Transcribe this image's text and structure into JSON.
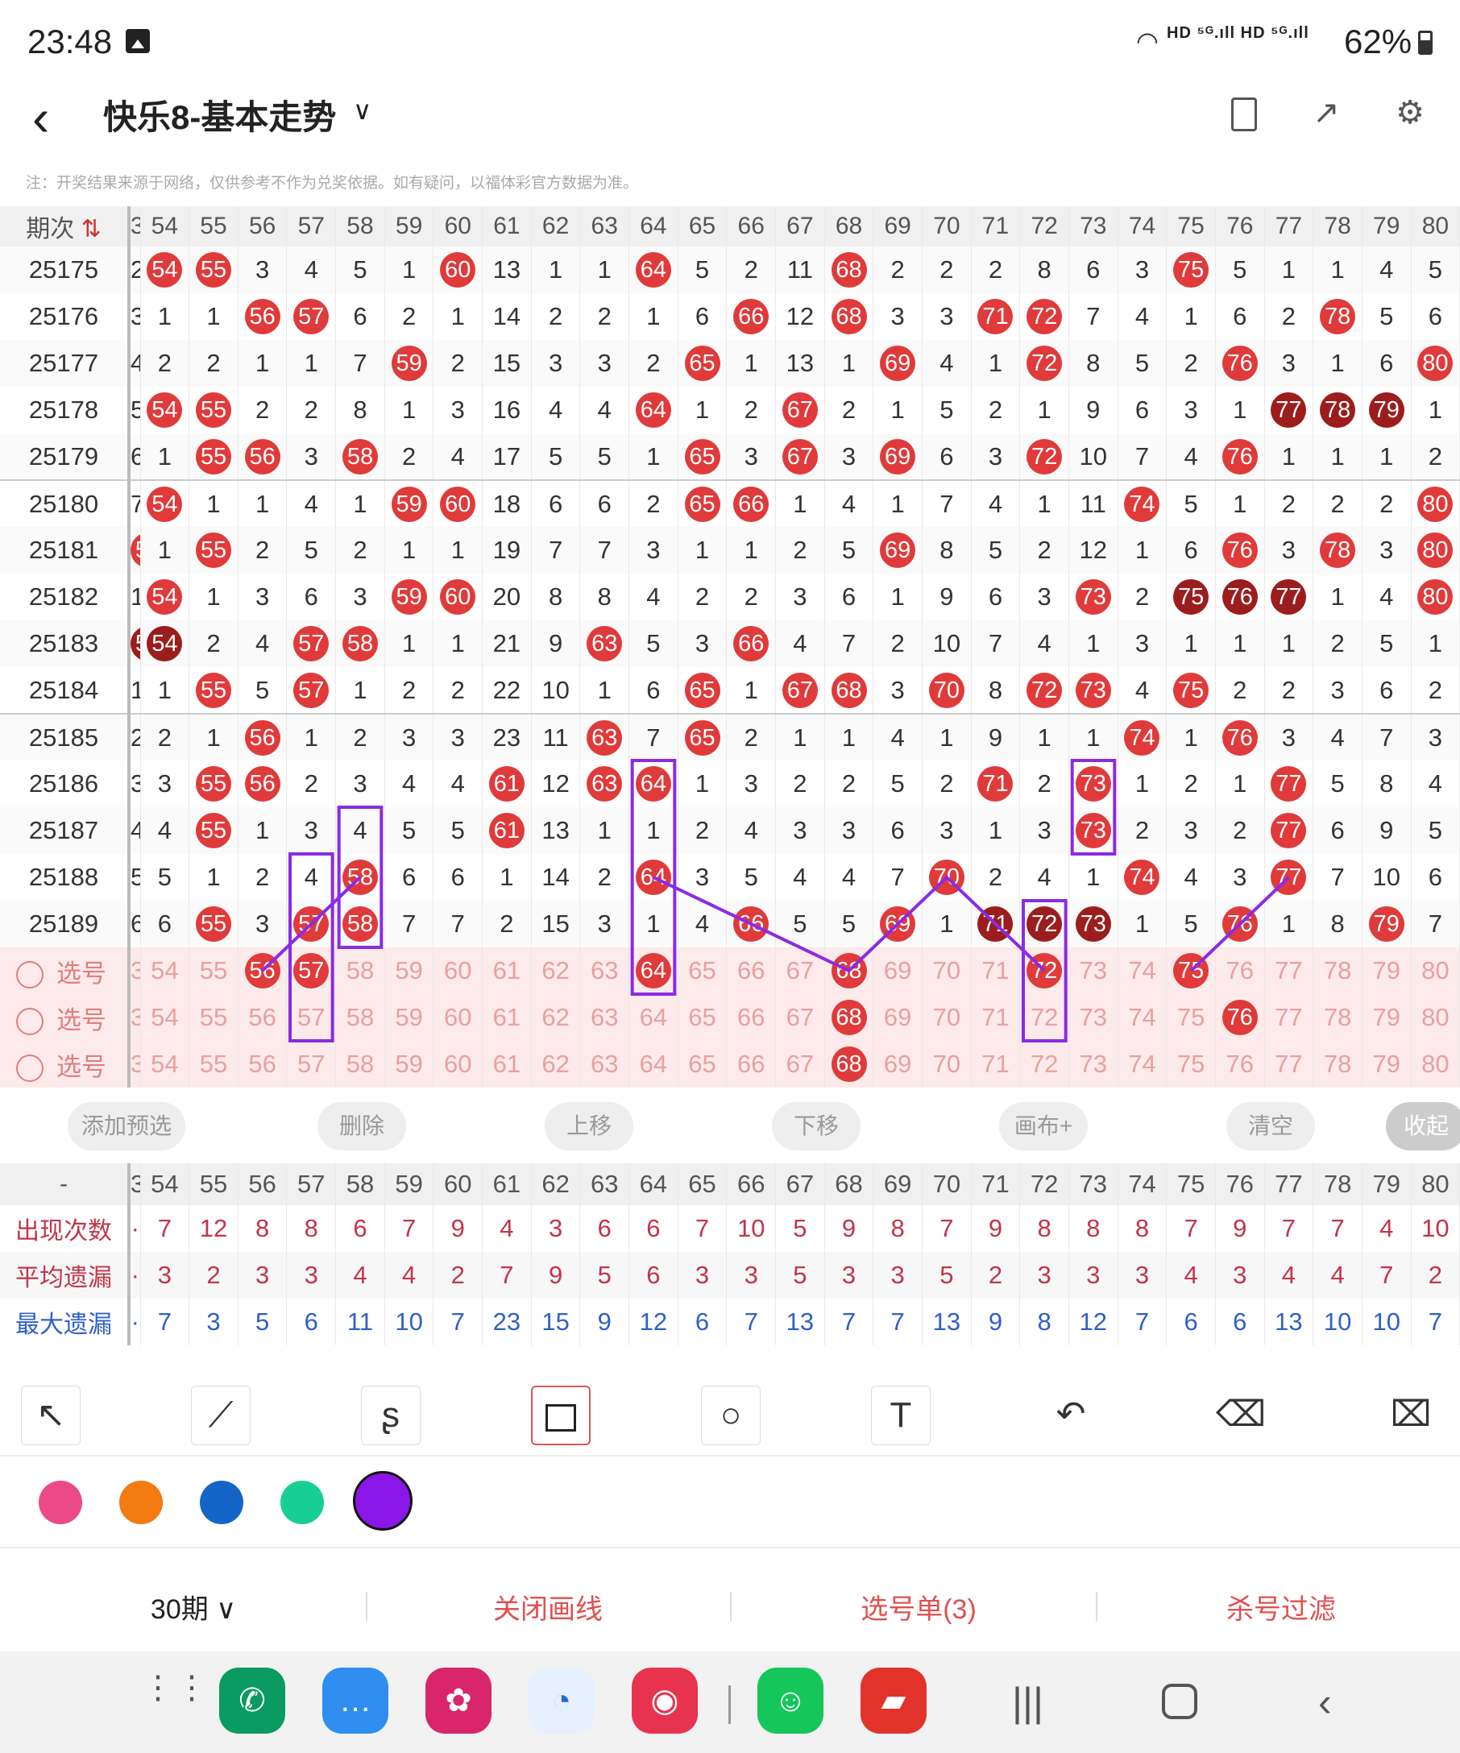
{
  "status": {
    "time": "23:48",
    "indicators": "HD ⁵ᴳ.ıll HD ⁵ᴳ.ıll",
    "battery": "62%"
  },
  "header": {
    "title": "快乐8-基本走势",
    "note": "注：开奖结果来源于网络，仅供参考不作为兑奖依据。如有疑问，以福体彩官方数据为准。"
  },
  "table": {
    "period_label": "期次",
    "cut_head": "3",
    "columns": [
      "54",
      "55",
      "56",
      "57",
      "58",
      "59",
      "60",
      "61",
      "62",
      "63",
      "64",
      "65",
      "66",
      "67",
      "68",
      "69",
      "70",
      "71",
      "72",
      "73",
      "74",
      "75",
      "76",
      "77",
      "78",
      "79",
      "80"
    ],
    "rows": [
      {
        "p": "25175",
        "cut": "2",
        "c": [
          "*54",
          "*55",
          "3",
          "4",
          "5",
          "1",
          "*60",
          "13",
          "1",
          "1",
          "*64",
          "5",
          "2",
          "11",
          "*68",
          "2",
          "2",
          "2",
          "8",
          "6",
          "3",
          "*75",
          "5",
          "1",
          "1",
          "4",
          "5"
        ]
      },
      {
        "p": "25176",
        "cut": "3",
        "c": [
          "1",
          "1",
          "*56",
          "*57",
          "6",
          "2",
          "1",
          "14",
          "2",
          "2",
          "1",
          "6",
          "*66",
          "12",
          "*68",
          "3",
          "3",
          "*71",
          "*72",
          "7",
          "4",
          "1",
          "6",
          "2",
          "*78",
          "5",
          "6"
        ]
      },
      {
        "p": "25177",
        "cut": "4",
        "c": [
          "2",
          "2",
          "1",
          "1",
          "7",
          "*59",
          "2",
          "15",
          "3",
          "3",
          "2",
          "*65",
          "1",
          "13",
          "1",
          "*69",
          "4",
          "1",
          "*72",
          "8",
          "5",
          "2",
          "*76",
          "3",
          "1",
          "6",
          "*80"
        ]
      },
      {
        "p": "25178",
        "cut": "5",
        "c": [
          "*54",
          "*55",
          "2",
          "2",
          "8",
          "1",
          "3",
          "16",
          "4",
          "4",
          "*64",
          "1",
          "2",
          "*67",
          "2",
          "1",
          "5",
          "2",
          "1",
          "9",
          "6",
          "3",
          "1",
          "#77",
          "#78",
          "#79",
          "1"
        ]
      },
      {
        "p": "25179",
        "cut": "6",
        "c": [
          "1",
          "*55",
          "*56",
          "3",
          "*58",
          "2",
          "4",
          "17",
          "5",
          "5",
          "1",
          "*65",
          "3",
          "*67",
          "3",
          "*69",
          "6",
          "3",
          "*72",
          "10",
          "7",
          "4",
          "*76",
          "1",
          "1",
          "1",
          "2"
        ]
      },
      {
        "p": "25180",
        "cut": "7",
        "c": [
          "*54",
          "1",
          "1",
          "4",
          "1",
          "*59",
          "*60",
          "18",
          "6",
          "6",
          "2",
          "*65",
          "*66",
          "1",
          "4",
          "1",
          "7",
          "4",
          "1",
          "11",
          "*74",
          "5",
          "1",
          "2",
          "2",
          "2",
          "*80"
        ]
      },
      {
        "p": "25181",
        "cut": "*53",
        "c": [
          "1",
          "*55",
          "2",
          "5",
          "2",
          "1",
          "1",
          "19",
          "7",
          "7",
          "3",
          "1",
          "1",
          "2",
          "5",
          "*69",
          "8",
          "5",
          "2",
          "12",
          "1",
          "6",
          "*76",
          "3",
          "*78",
          "3",
          "*80"
        ]
      },
      {
        "p": "25182",
        "cut": "1",
        "c": [
          "*54",
          "1",
          "3",
          "6",
          "3",
          "*59",
          "*60",
          "20",
          "8",
          "8",
          "4",
          "2",
          "2",
          "3",
          "6",
          "1",
          "9",
          "6",
          "3",
          "*73",
          "2",
          "#75",
          "#76",
          "#77",
          "1",
          "4",
          "*80"
        ]
      },
      {
        "p": "25183",
        "cut": "#53",
        "c": [
          "#54",
          "2",
          "4",
          "*57",
          "*58",
          "1",
          "1",
          "21",
          "9",
          "*63",
          "5",
          "3",
          "*66",
          "4",
          "7",
          "2",
          "10",
          "7",
          "4",
          "1",
          "3",
          "1",
          "1",
          "1",
          "2",
          "5",
          "1"
        ]
      },
      {
        "p": "25184",
        "cut": "1",
        "c": [
          "1",
          "*55",
          "5",
          "*57",
          "1",
          "2",
          "2",
          "22",
          "10",
          "1",
          "6",
          "*65",
          "1",
          "*67",
          "*68",
          "3",
          "*70",
          "8",
          "*72",
          "*73",
          "4",
          "*75",
          "2",
          "2",
          "3",
          "6",
          "2"
        ]
      },
      {
        "p": "25185",
        "cut": "2",
        "c": [
          "2",
          "1",
          "*56",
          "1",
          "2",
          "3",
          "3",
          "23",
          "11",
          "*63",
          "7",
          "*65",
          "2",
          "1",
          "1",
          "4",
          "1",
          "9",
          "1",
          "1",
          "*74",
          "1",
          "*76",
          "3",
          "4",
          "7",
          "3"
        ]
      },
      {
        "p": "25186",
        "cut": "3",
        "c": [
          "3",
          "*55",
          "*56",
          "2",
          "3",
          "4",
          "4",
          "*61",
          "12",
          "*63",
          "*64",
          "1",
          "3",
          "2",
          "2",
          "5",
          "2",
          "*71",
          "2",
          "*73",
          "1",
          "2",
          "1",
          "*77",
          "5",
          "8",
          "4"
        ]
      },
      {
        "p": "25187",
        "cut": "4",
        "c": [
          "4",
          "*55",
          "1",
          "3",
          "4",
          "5",
          "5",
          "*61",
          "13",
          "1",
          "1",
          "2",
          "4",
          "3",
          "3",
          "6",
          "3",
          "1",
          "3",
          "*73",
          "2",
          "3",
          "2",
          "*77",
          "6",
          "9",
          "5"
        ]
      },
      {
        "p": "25188",
        "cut": "5",
        "c": [
          "5",
          "1",
          "2",
          "4",
          "*58",
          "6",
          "6",
          "1",
          "14",
          "2",
          "*64",
          "3",
          "5",
          "4",
          "4",
          "7",
          "*70",
          "2",
          "4",
          "1",
          "*74",
          "4",
          "3",
          "*77",
          "7",
          "10",
          "6"
        ]
      },
      {
        "p": "25189",
        "cut": "6",
        "c": [
          "6",
          "*55",
          "3",
          "*57",
          "*58",
          "7",
          "7",
          "2",
          "15",
          "3",
          "1",
          "4",
          "*66",
          "5",
          "5",
          "*69",
          "1",
          "#71",
          "#72",
          "#73",
          "1",
          "5",
          "*76",
          "1",
          "8",
          "*79",
          "7"
        ]
      }
    ],
    "select_label": "选号",
    "select_rows": [
      {
        "cut": "3",
        "balls": [
          "56",
          "57",
          "64",
          "68",
          "72",
          "75"
        ]
      },
      {
        "cut": "3",
        "balls": [
          "68",
          "76"
        ]
      },
      {
        "cut": "3",
        "balls": [
          "68"
        ]
      }
    ]
  },
  "buttons": {
    "add": "添加预选",
    "del": "删除",
    "up": "上移",
    "down": "下移",
    "canvas": "画布+",
    "clear": "清空",
    "collapse": "收起"
  },
  "stats": {
    "dash": "-",
    "rows": [
      {
        "label": "出现次数",
        "cls": "r",
        "vals": [
          "7",
          "12",
          "8",
          "8",
          "6",
          "7",
          "9",
          "4",
          "3",
          "6",
          "6",
          "7",
          "10",
          "5",
          "9",
          "8",
          "7",
          "9",
          "8",
          "8",
          "8",
          "7",
          "9",
          "7",
          "7",
          "4",
          "10"
        ]
      },
      {
        "label": "平均遗漏",
        "cls": "r",
        "vals": [
          "3",
          "2",
          "3",
          "3",
          "4",
          "4",
          "2",
          "7",
          "9",
          "5",
          "6",
          "3",
          "3",
          "5",
          "3",
          "3",
          "5",
          "2",
          "3",
          "3",
          "3",
          "4",
          "3",
          "4",
          "4",
          "7",
          "2"
        ]
      },
      {
        "label": "最大遗漏",
        "cls": "b",
        "vals": [
          "7",
          "3",
          "5",
          "6",
          "11",
          "10",
          "7",
          "23",
          "15",
          "9",
          "12",
          "6",
          "7",
          "13",
          "7",
          "7",
          "13",
          "9",
          "8",
          "12",
          "7",
          "6",
          "6",
          "13",
          "10",
          "10",
          "7"
        ]
      }
    ]
  },
  "colors": {
    "pink": "#ec4a86",
    "orange": "#f47a12",
    "blue": "#1565c8",
    "green": "#17cf95",
    "purple": "#8b16e8",
    "accent": "#e03a3a",
    "annotation": "#8b2be2"
  },
  "bottom": {
    "periods": "30期",
    "close_draw": "关闭画线",
    "selection": "选号单(3)",
    "filter": "杀号过滤"
  }
}
